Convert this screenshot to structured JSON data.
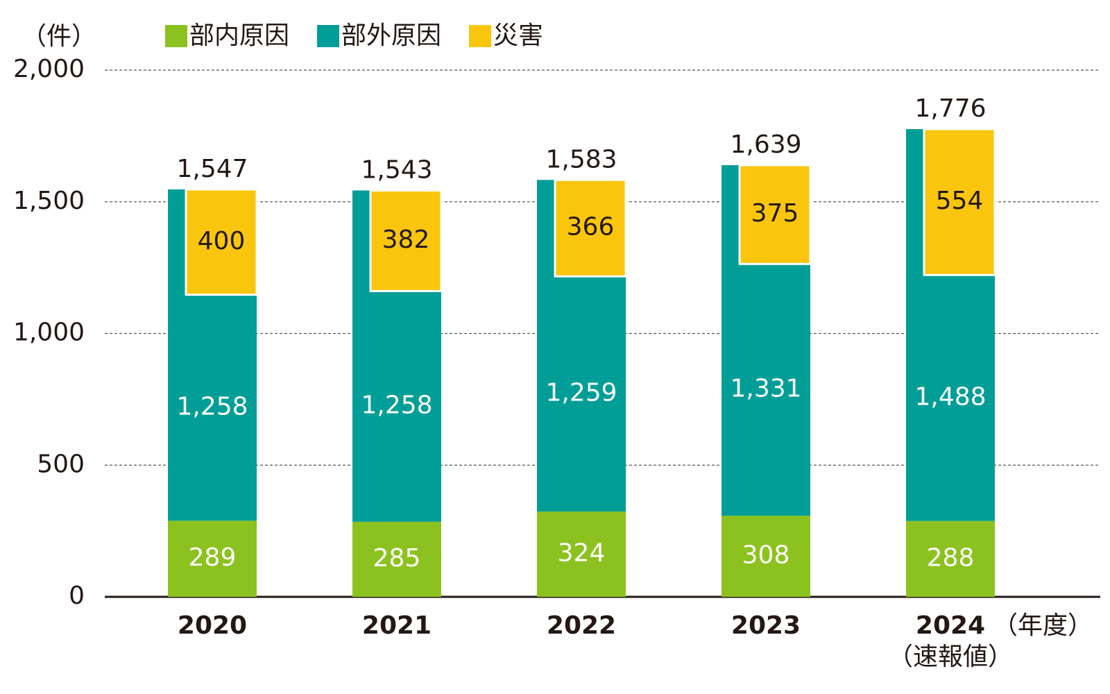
{
  "chart_data": {
    "type": "bar",
    "y_unit": "（件）",
    "x_unit": "（年度）",
    "categories": [
      "2020",
      "2021",
      "2022",
      "2023",
      "2024"
    ],
    "category_notes": [
      null,
      null,
      null,
      null,
      "（速報値）"
    ],
    "series": [
      {
        "name": "部内原因",
        "color": "#8cc21f",
        "values": [
          289,
          285,
          324,
          308,
          288
        ]
      },
      {
        "name": "部外原因",
        "color": "#009e96",
        "values": [
          1258,
          1258,
          1259,
          1331,
          1488
        ],
        "value_labels": [
          "1,258",
          "1,258",
          "1,259",
          "1,331",
          "1,488"
        ]
      },
      {
        "name": "災害",
        "color": "#f9c60d",
        "inset": true,
        "values": [
          400,
          382,
          366,
          375,
          554
        ]
      }
    ],
    "totals": [
      1547,
      1543,
      1583,
      1639,
      1776
    ],
    "total_labels": [
      "1,547",
      "1,543",
      "1,583",
      "1,639",
      "1,776"
    ],
    "ylim": [
      0,
      2000
    ],
    "yticks": [
      0,
      500,
      {
        "value": 1000,
        "label": "1,000"
      },
      {
        "value": 1500,
        "label": "1,500"
      },
      {
        "value": 2000,
        "label": "2,000"
      }
    ],
    "grid": true
  }
}
